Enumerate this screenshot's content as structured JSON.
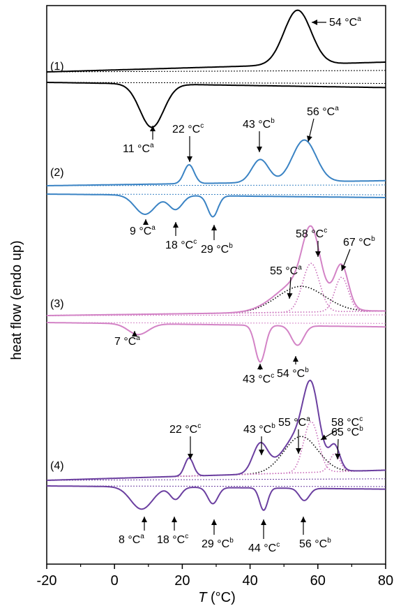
{
  "chart_data": {
    "type": "line",
    "xlabel": "T (°C)",
    "xlabel_italic": "T",
    "xlabel_unit": " (°C)",
    "ylabel": "heat flow (endo up)",
    "xlim": [
      -20,
      80
    ],
    "x_ticks": [
      -20,
      0,
      20,
      40,
      60,
      80
    ],
    "x_tick_labels": [
      "-20",
      "0",
      "20",
      "40",
      "60",
      "80"
    ],
    "y_ticks_shown": false,
    "grid": false,
    "colors": {
      "1": "#000000",
      "2": "#3a83c4",
      "3": "#d383c6",
      "4": "#6b3fa0",
      "fit_black": "#000000",
      "fit_pink": "#c86ab8"
    },
    "panels": [
      {
        "label": "(1)",
        "color_key": "1",
        "heating": {
          "baseline": [
            [
              -20,
              0.0
            ],
            [
              80,
              0.18
            ]
          ],
          "peaks": [
            {
              "x": 54,
              "height": 1.0,
              "width": 4.0
            }
          ]
        },
        "cooling": {
          "baseline": [
            [
              -20,
              0.0
            ],
            [
              80,
              -0.12
            ]
          ],
          "peaks": [
            {
              "x": 11,
              "height": -1.0,
              "width": 3.5
            }
          ]
        },
        "annotations": [
          {
            "value": "54 °C",
            "sup": "a",
            "x": 54,
            "side": "heating"
          },
          {
            "value": "11 °C",
            "sup": "a",
            "x": 11,
            "side": "cooling"
          }
        ]
      },
      {
        "label": "(2)",
        "color_key": "2",
        "heating": {
          "baseline": [
            [
              -20,
              0.0
            ],
            [
              80,
              0.12
            ]
          ],
          "peaks": [
            {
              "x": 22,
              "height": 0.45,
              "width": 1.5
            },
            {
              "x": 43,
              "height": 0.55,
              "width": 2.5
            },
            {
              "x": 56,
              "height": 1.0,
              "width": 3.5
            }
          ]
        },
        "cooling": {
          "baseline": [
            [
              -20,
              0.0
            ],
            [
              80,
              -0.1
            ]
          ],
          "peaks": [
            {
              "x": 9,
              "height": -0.55,
              "width": 3.0
            },
            {
              "x": 18,
              "height": -0.4,
              "width": 2.0
            },
            {
              "x": 29,
              "height": -0.6,
              "width": 1.5
            }
          ]
        },
        "annotations": [
          {
            "value": "22 °C",
            "sup": "c",
            "x": 22,
            "side": "heating"
          },
          {
            "value": "43 °C",
            "sup": "b",
            "x": 43,
            "side": "heating"
          },
          {
            "value": "56 °C",
            "sup": "a",
            "x": 56,
            "side": "heating"
          },
          {
            "value": "9 °C",
            "sup": "a",
            "x": 9,
            "side": "cooling"
          },
          {
            "value": "18 °C",
            "sup": "c",
            "x": 18,
            "side": "cooling"
          },
          {
            "value": "29 °C",
            "sup": "b",
            "x": 29,
            "side": "cooling"
          }
        ]
      },
      {
        "label": "(3)",
        "color_key": "3",
        "heating": {
          "baseline": [
            [
              -20,
              0.0
            ],
            [
              80,
              0.08
            ]
          ],
          "peaks": [
            {
              "x": 55,
              "height": 0.55,
              "width": 7.0
            },
            {
              "x": 58,
              "height": 1.0,
              "width": 2.5
            },
            {
              "x": 67,
              "height": 0.7,
              "width": 2.0
            }
          ]
        },
        "heating_fits": [
          {
            "style": "dotted",
            "color_key": "fit_black",
            "peak": {
              "x": 55,
              "height": 0.45,
              "width": 7.0
            }
          },
          {
            "style": "dotted",
            "color_key": "fit_pink",
            "peak": {
              "x": 58,
              "height": 0.85,
              "width": 2.5
            }
          },
          {
            "style": "dotted",
            "color_key": "fit_pink",
            "peak": {
              "x": 67,
              "height": 0.6,
              "width": 2.0
            }
          }
        ],
        "cooling": {
          "baseline": [
            [
              -20,
              0.0
            ],
            [
              80,
              -0.1
            ]
          ],
          "peaks": [
            {
              "x": 7,
              "height": -0.25,
              "width": 3.0
            },
            {
              "x": 43,
              "height": -0.85,
              "width": 1.5
            },
            {
              "x": 54,
              "height": -0.45,
              "width": 1.8
            }
          ]
        },
        "annotations": [
          {
            "value": "55 °C",
            "sup": "a",
            "x": 55,
            "side": "heating"
          },
          {
            "value": "58 °C",
            "sup": "c",
            "x": 58,
            "side": "heating"
          },
          {
            "value": "67 °C",
            "sup": "b",
            "x": 67,
            "side": "heating"
          },
          {
            "value": "7 °C",
            "sup": "a",
            "x": 7,
            "side": "cooling"
          },
          {
            "value": "43 °C",
            "sup": "c",
            "x": 43,
            "side": "cooling"
          },
          {
            "value": "54 °C",
            "sup": "b",
            "x": 54,
            "side": "cooling"
          }
        ]
      },
      {
        "label": "(4)",
        "color_key": "4",
        "heating": {
          "baseline": [
            [
              -20,
              0.0
            ],
            [
              80,
              0.14
            ]
          ],
          "peaks": [
            {
              "x": 22,
              "height": 0.25,
              "width": 1.3
            },
            {
              "x": 43,
              "height": 0.4,
              "width": 2.2
            },
            {
              "x": 55,
              "height": 0.55,
              "width": 5.0
            },
            {
              "x": 58,
              "height": 0.8,
              "width": 2.2
            },
            {
              "x": 65,
              "height": 0.3,
              "width": 1.5
            }
          ]
        },
        "heating_fits": [
          {
            "style": "dotted",
            "color_key": "fit_black",
            "peak": {
              "x": 55,
              "height": 0.5,
              "width": 5.0
            }
          },
          {
            "style": "dotted",
            "color_key": "fit_pink",
            "peak": {
              "x": 58,
              "height": 0.7,
              "width": 2.2
            }
          },
          {
            "style": "dotted",
            "color_key": "fit_pink",
            "peak": {
              "x": 65,
              "height": 0.25,
              "width": 1.5
            }
          }
        ],
        "cooling": {
          "baseline": [
            [
              -20,
              0.0
            ],
            [
              80,
              -0.08
            ]
          ],
          "peaks": [
            {
              "x": 8,
              "height": -0.55,
              "width": 3.2
            },
            {
              "x": 18,
              "height": -0.3,
              "width": 1.6
            },
            {
              "x": 29,
              "height": -0.4,
              "width": 1.5
            },
            {
              "x": 44,
              "height": -0.55,
              "width": 1.2
            },
            {
              "x": 56,
              "height": -0.3,
              "width": 1.5
            }
          ]
        },
        "annotations": [
          {
            "value": "22 °C",
            "sup": "c",
            "x": 22,
            "side": "heating"
          },
          {
            "value": "43 °C",
            "sup": "b",
            "x": 43,
            "side": "heating"
          },
          {
            "value": "55 °C",
            "sup": "a",
            "x": 55,
            "side": "heating"
          },
          {
            "value": "58 °C",
            "sup": "c",
            "x": 58,
            "side": "heating"
          },
          {
            "value": "65 °C",
            "sup": "b",
            "x": 65,
            "side": "heating"
          },
          {
            "value": "8 °C",
            "sup": "a",
            "x": 8,
            "side": "cooling"
          },
          {
            "value": "18 °C",
            "sup": "c",
            "x": 18,
            "side": "cooling"
          },
          {
            "value": "29 °C",
            "sup": "b",
            "x": 29,
            "side": "cooling"
          },
          {
            "value": "44 °C",
            "sup": "c",
            "x": 44,
            "side": "cooling"
          },
          {
            "value": "56 °C",
            "sup": "b",
            "x": 56,
            "side": "cooling"
          }
        ]
      }
    ]
  }
}
